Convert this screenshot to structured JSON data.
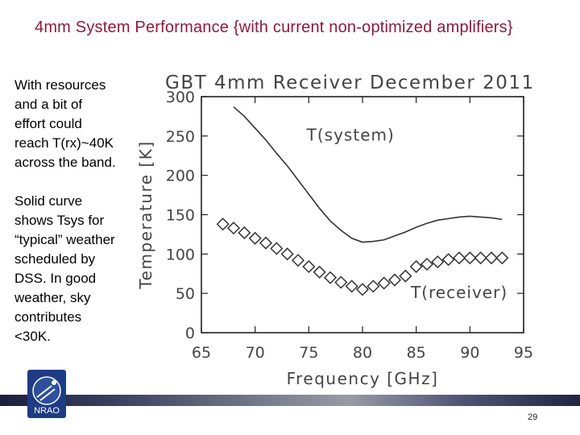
{
  "slide": {
    "title": "4mm System Performance {with current non-optimized amplifiers}",
    "paragraph1": [
      "With resources",
      "and a bit of",
      "effort could",
      "reach T(rx)~40K",
      "across the band."
    ],
    "paragraph2": [
      "Solid curve",
      "shows Tsys for",
      "“typical” weather",
      "scheduled by",
      "DSS.   In good",
      "weather, sky",
      "contributes",
      "<30K."
    ],
    "page_number": "29",
    "logo_text": "NRAO"
  },
  "colors": {
    "title": "#8b1a3b",
    "series": "#333333"
  },
  "chart_data": {
    "type": "line",
    "title": "GBT 4mm Receiver December 2011",
    "xlabel": "Frequency [GHz]",
    "ylabel": "Temperature [K]",
    "xlim": [
      65,
      95
    ],
    "ylim": [
      0,
      300
    ],
    "xticks": [
      65,
      70,
      75,
      80,
      85,
      90,
      95
    ],
    "yticks": [
      0,
      50,
      100,
      150,
      200,
      250,
      300
    ],
    "xtick_labels": [
      "65",
      "70",
      "75",
      "80",
      "85",
      "90",
      "95"
    ],
    "ytick_labels": [
      "0",
      "50",
      "100",
      "150",
      "200",
      "250",
      "300"
    ],
    "series": [
      {
        "name": "T(system)",
        "marker": "none",
        "x": [
          68,
          69,
          70,
          71,
          72,
          73,
          74,
          75,
          76,
          77,
          78,
          79,
          80,
          81,
          82,
          83,
          84,
          85,
          86,
          87,
          88,
          89,
          90,
          91,
          92,
          93
        ],
        "values": [
          287,
          275,
          260,
          245,
          228,
          212,
          194,
          176,
          158,
          142,
          130,
          120,
          115,
          116,
          118,
          123,
          128,
          134,
          139,
          143,
          145,
          147,
          148,
          147,
          146,
          144
        ]
      },
      {
        "name": "T(receiver)",
        "marker": "diamond",
        "x": [
          67,
          68,
          69,
          70,
          71,
          72,
          73,
          74,
          75,
          76,
          77,
          78,
          79,
          80,
          81,
          82,
          83,
          84,
          85,
          86,
          87,
          88,
          89,
          90,
          91,
          92,
          93
        ],
        "values": [
          138,
          133,
          127,
          120,
          114,
          107,
          100,
          92,
          84,
          77,
          70,
          64,
          59,
          55,
          59,
          63,
          67,
          72,
          84,
          87,
          90,
          93,
          95,
          95,
          95,
          95,
          95
        ]
      }
    ],
    "annotations": [
      {
        "text": "T(system)",
        "x": 74.8,
        "y": 244
      },
      {
        "text": "T(receiver)",
        "x": 84.5,
        "y": 44
      }
    ]
  }
}
